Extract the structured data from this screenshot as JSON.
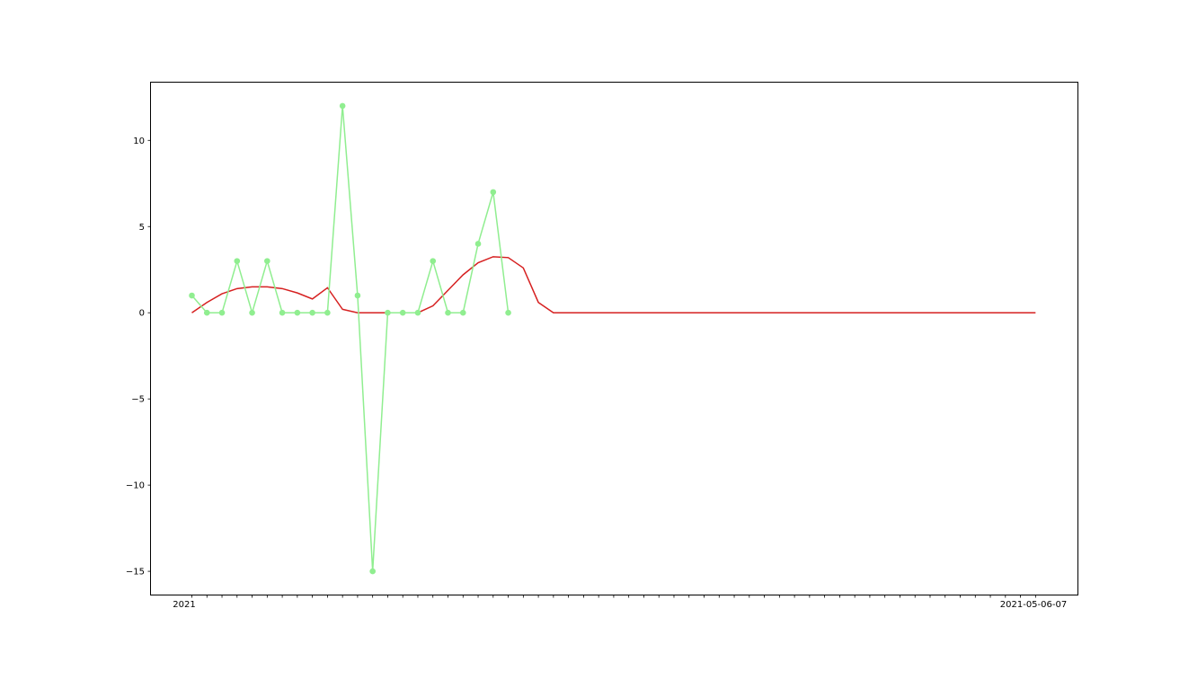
{
  "chart_data": {
    "type": "line",
    "title": "",
    "xlabel": "",
    "ylabel": "",
    "ylim": [
      -16.35,
      13.35
    ],
    "y_ticks": [
      -15,
      -10,
      -5,
      0,
      5,
      10
    ],
    "y_tick_labels": [
      "−15",
      "−10",
      "−5",
      "0",
      "5",
      "10"
    ],
    "x_first_label_visible": "2021",
    "x_last_label": "2021-05-06-07",
    "grid": false,
    "legend": "none",
    "series": [
      {
        "color": "#90ee90",
        "marker": "circle",
        "values": [
          1,
          0,
          0,
          3,
          0,
          3,
          0,
          0,
          0,
          0,
          12,
          1,
          -15,
          0,
          0,
          0,
          3,
          0,
          0,
          4,
          7,
          0
        ]
      },
      {
        "color": "#d62020",
        "marker": "none",
        "values": [
          0,
          0.6,
          1.1,
          1.4,
          1.5,
          1.5,
          1.4,
          1.15,
          0.8,
          1.45,
          0.2,
          0,
          0,
          0,
          0,
          0,
          0.4,
          1.3,
          2.2,
          2.9,
          3.25,
          3.2,
          2.6,
          0.6,
          0,
          0,
          0,
          0,
          0,
          0,
          0,
          0,
          0,
          0,
          0,
          0,
          0,
          0,
          0,
          0,
          0,
          0,
          0,
          0,
          0,
          0,
          0,
          0,
          0,
          0,
          0,
          0,
          0,
          0,
          0,
          0,
          0
        ]
      }
    ]
  }
}
